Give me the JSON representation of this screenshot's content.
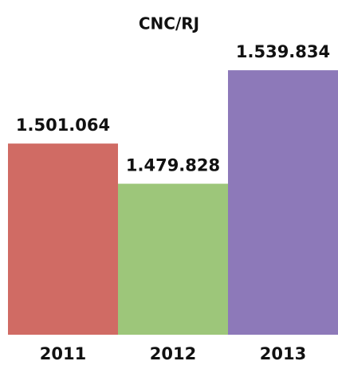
{
  "chart_data": {
    "type": "bar",
    "title": "CNC/RJ",
    "categories": [
      "2011",
      "2012",
      "2013"
    ],
    "values": [
      1501064,
      1479828,
      1539834
    ],
    "value_labels": [
      "1.501.064",
      "1.479.828",
      "1.539.834"
    ],
    "colors": [
      "#d06b64",
      "#9dc67a",
      "#8d79b9"
    ],
    "ylim": [
      1400000,
      1550000
    ]
  }
}
